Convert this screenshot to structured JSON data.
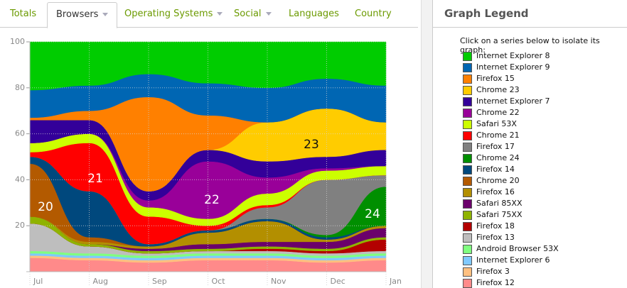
{
  "tabs": [
    "Totals",
    "Browsers",
    "Operating Systems",
    "Social",
    "Languages",
    "Country"
  ],
  "legend": {
    "title": "Graph Legend",
    "instruction": "Click on a series below to isolate its graph:"
  },
  "chart_data": {
    "type": "stacked-area",
    "categories": [
      "Jul",
      "Aug",
      "Sep",
      "Oct",
      "Nov",
      "Dec",
      "Jan"
    ],
    "ylim": [
      0,
      100
    ],
    "yticks": [
      20,
      40,
      60,
      80,
      100
    ],
    "grid": true,
    "annotations": [
      "20",
      "21",
      "22",
      "23",
      "24"
    ],
    "series": [
      {
        "name": "Internet Explorer 8",
        "color": "#00cc00",
        "values": [
          21,
          19,
          14,
          18,
          20,
          16,
          19
        ]
      },
      {
        "name": "Internet Explorer 9",
        "color": "#0066b3",
        "values": [
          12,
          11,
          10,
          14,
          15,
          13,
          16
        ]
      },
      {
        "name": "Firefox 15",
        "color": "#ff8000",
        "values": [
          1,
          4,
          41,
          15,
          0,
          0,
          0
        ]
      },
      {
        "name": "Chrome 23",
        "color": "#ffcc00",
        "values": [
          0,
          0,
          0,
          0,
          17,
          21,
          12
        ]
      },
      {
        "name": "Internet Explorer 7",
        "color": "#330099",
        "values": [
          10,
          6,
          4,
          5,
          7,
          5,
          7
        ]
      },
      {
        "name": "Chrome 22",
        "color": "#990099",
        "values": [
          0,
          0,
          3,
          25,
          7,
          1,
          0
        ]
      },
      {
        "name": "Safari 53X",
        "color": "#ccff00",
        "values": [
          4,
          4,
          4,
          3,
          5,
          4,
          4
        ]
      },
      {
        "name": "Chrome 21",
        "color": "#ff0000",
        "values": [
          2,
          21,
          12,
          2,
          1,
          0,
          0
        ]
      },
      {
        "name": "Firefox 17",
        "color": "#808080",
        "values": [
          0,
          0,
          0,
          0,
          5,
          24,
          5
        ]
      },
      {
        "name": "Chrome 24",
        "color": "#008f00",
        "values": [
          0,
          0,
          0,
          0,
          0,
          1,
          17
        ]
      },
      {
        "name": "Firefox 14",
        "color": "#00487d",
        "values": [
          3,
          20,
          1,
          1,
          1,
          1,
          0
        ]
      },
      {
        "name": "Chrome 20",
        "color": "#b35a00",
        "values": [
          23,
          2,
          0,
          0,
          0,
          0,
          0
        ]
      },
      {
        "name": "Firefox 16",
        "color": "#b38f00",
        "values": [
          0,
          1,
          1,
          5,
          9,
          1,
          1
        ]
      },
      {
        "name": "Safari 85XX",
        "color": "#6b006b",
        "values": [
          0,
          0,
          1,
          2,
          2,
          3,
          4
        ]
      },
      {
        "name": "Safari 75XX",
        "color": "#8fb300",
        "values": [
          3,
          1,
          1,
          1,
          1,
          1,
          1
        ]
      },
      {
        "name": "Firefox 18",
        "color": "#b30000",
        "values": [
          0,
          0,
          0,
          0,
          1,
          1,
          5
        ]
      },
      {
        "name": "Firefox 13",
        "color": "#bebebe",
        "values": [
          12,
          3,
          1,
          1,
          1,
          1,
          1
        ]
      },
      {
        "name": "Android Browser 53X",
        "color": "#80ff80",
        "values": [
          1,
          1,
          1,
          1,
          1,
          1,
          1
        ]
      },
      {
        "name": "Internet Explorer 6",
        "color": "#80c9ff",
        "values": [
          1,
          1,
          1,
          1,
          1,
          1,
          1
        ]
      },
      {
        "name": "Firefox 3",
        "color": "#ffc080",
        "values": [
          1,
          1,
          1,
          1,
          1,
          1,
          1
        ]
      },
      {
        "name": "Firefox 12",
        "color": "#ff8a8a",
        "values": [
          6,
          5,
          4,
          5,
          5,
          4,
          5
        ]
      }
    ]
  }
}
